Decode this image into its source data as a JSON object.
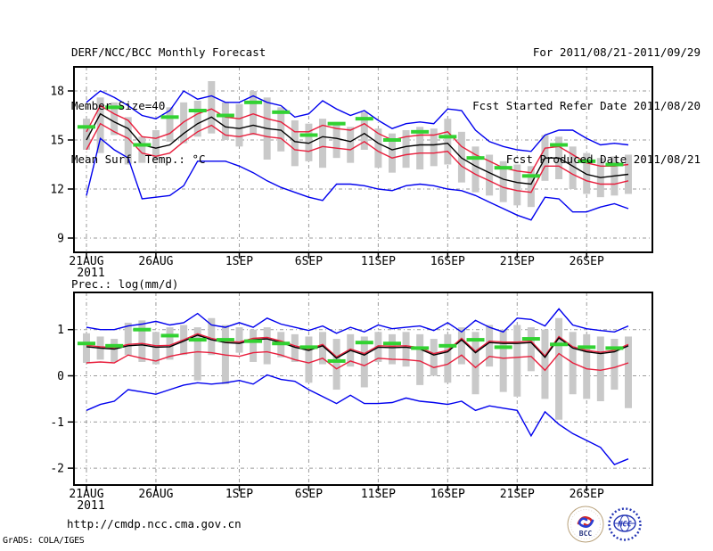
{
  "header": {
    "title": "DERF/NCC/BCC Monthly Forecast",
    "member_size": "Member Size=40",
    "period": "For 2011/08/21-2011/09/29",
    "refer_date": "Fcst Started Refer Date 2011/08/20",
    "produced_date": "Fcst Produced Date 2011/08/21"
  },
  "footer": {
    "url": "http://cmdp.ncc.cma.gov.cn",
    "credit": "GrADS: COLA/IGES",
    "logos": [
      {
        "name": "bcc-logo",
        "text": "BCC"
      },
      {
        "name": "ncc-logo",
        "text": "NCC"
      }
    ]
  },
  "colors": {
    "blue": "#0000ee",
    "red": "#e81e3c",
    "black": "#000000",
    "green": "#32d232",
    "bar_gray": "#c9c9c9",
    "grid_gray": "#999999",
    "frame": "#000000"
  },
  "chart_data": [
    {
      "type": "line",
      "title": "Mean Surf. Temp.: °C",
      "n_days": 40,
      "start_date": "21AUG2011",
      "end_date": "29SEP2011",
      "x_tick_labels": [
        "21AUG",
        "26AUG",
        "1SEP",
        "6SEP",
        "11SEP",
        "16SEP",
        "21SEP",
        "26SEP"
      ],
      "x_tick_days": [
        0,
        5,
        11,
        16,
        21,
        26,
        31,
        36
      ],
      "x_year_label": "2011",
      "y_ticks": [
        9,
        12,
        15,
        18
      ],
      "ylim": [
        8.1,
        19.5
      ],
      "grid": true,
      "series": [
        {
          "name": "ensemble-max",
          "color": "blue",
          "values": [
            17.3,
            18.0,
            17.6,
            17.1,
            16.5,
            16.3,
            16.8,
            18.0,
            17.5,
            17.7,
            17.3,
            17.3,
            17.7,
            17.3,
            17.1,
            16.4,
            16.6,
            17.4,
            16.9,
            16.5,
            16.8,
            16.2,
            15.7,
            16.0,
            16.1,
            16.0,
            16.9,
            16.8,
            15.6,
            14.9,
            14.6,
            14.4,
            14.3,
            15.3,
            15.6,
            15.6,
            15.1,
            14.7,
            14.8,
            14.7
          ]
        },
        {
          "name": "upper-spread",
          "color": "red",
          "values": [
            15.5,
            17.1,
            16.6,
            16.2,
            15.2,
            15.1,
            15.4,
            16.1,
            16.6,
            16.9,
            16.4,
            16.3,
            16.6,
            16.3,
            16.1,
            15.5,
            15.5,
            15.9,
            15.7,
            15.6,
            16.0,
            15.4,
            15.0,
            15.2,
            15.3,
            15.3,
            15.5,
            14.6,
            14.1,
            13.7,
            13.3,
            13.1,
            13.0,
            14.5,
            14.6,
            14.1,
            13.6,
            13.4,
            13.4,
            13.5
          ]
        },
        {
          "name": "ensemble-mean",
          "color": "black",
          "values": [
            15.0,
            16.6,
            16.1,
            15.7,
            14.7,
            14.5,
            14.7,
            15.4,
            16.0,
            16.4,
            15.8,
            15.7,
            15.9,
            15.7,
            15.6,
            14.9,
            14.8,
            15.2,
            15.1,
            14.9,
            15.4,
            14.8,
            14.4,
            14.6,
            14.7,
            14.7,
            14.8,
            13.9,
            13.4,
            13.0,
            12.6,
            12.4,
            12.3,
            13.9,
            13.9,
            13.4,
            12.9,
            12.7,
            12.8,
            12.9
          ]
        },
        {
          "name": "lower-spread",
          "color": "red",
          "values": [
            14.4,
            16.0,
            15.5,
            15.1,
            14.2,
            14.0,
            14.2,
            14.9,
            15.5,
            15.9,
            15.3,
            15.2,
            15.4,
            15.2,
            15.1,
            14.4,
            14.3,
            14.6,
            14.5,
            14.4,
            14.9,
            14.3,
            13.9,
            14.1,
            14.2,
            14.2,
            14.3,
            13.4,
            12.9,
            12.5,
            12.1,
            11.9,
            11.8,
            13.4,
            13.4,
            12.9,
            12.5,
            12.3,
            12.3,
            12.5
          ]
        },
        {
          "name": "ensemble-min",
          "color": "blue",
          "values": [
            11.6,
            15.1,
            14.4,
            13.9,
            11.4,
            11.5,
            11.6,
            12.2,
            13.7,
            13.7,
            13.7,
            13.4,
            13.0,
            12.5,
            12.1,
            11.8,
            11.5,
            11.3,
            12.3,
            12.3,
            12.2,
            12.0,
            11.9,
            12.2,
            12.3,
            12.2,
            12.0,
            11.9,
            11.6,
            11.2,
            10.8,
            10.4,
            10.1,
            11.5,
            11.4,
            10.6,
            10.6,
            10.9,
            11.1,
            10.8
          ]
        }
      ],
      "bars": {
        "name": "member-range",
        "lo": [
          14.4,
          14.2,
          15.3,
          13.5,
          13.6,
          13.8,
          14.9,
          14.8,
          15.2,
          15.4,
          15.0,
          14.6,
          15.3,
          13.8,
          14.3,
          13.4,
          13.7,
          13.3,
          13.9,
          13.6,
          14.4,
          13.3,
          13.0,
          13.3,
          13.2,
          13.4,
          13.5,
          12.4,
          11.8,
          11.6,
          11.2,
          11.0,
          10.9,
          12.5,
          12.6,
          12.0,
          11.7,
          11.5,
          11.6,
          11.7
        ],
        "hi": [
          16.3,
          17.6,
          17.3,
          16.4,
          15.2,
          15.6,
          17.0,
          17.3,
          17.4,
          18.6,
          17.3,
          17.2,
          18.0,
          17.6,
          17.0,
          16.2,
          16.0,
          16.3,
          16.1,
          15.8,
          16.7,
          15.7,
          15.4,
          15.6,
          15.8,
          15.7,
          16.3,
          15.5,
          14.6,
          14.1,
          13.7,
          13.5,
          13.4,
          15.3,
          15.2,
          14.6,
          14.2,
          13.9,
          14.0,
          14.1
        ]
      },
      "dashes": {
        "name": "climatology",
        "days": [
          0,
          2,
          4,
          6,
          8,
          10,
          12,
          14,
          16,
          18,
          20,
          22,
          24,
          26,
          28,
          30,
          32,
          34,
          36,
          38
        ],
        "values": [
          15.8,
          17.0,
          14.7,
          16.4,
          16.8,
          16.5,
          17.3,
          16.7,
          15.3,
          16.0,
          16.3,
          15.0,
          15.5,
          15.2,
          13.9,
          13.3,
          12.8,
          14.7,
          13.7,
          13.5
        ]
      }
    },
    {
      "type": "line",
      "title": "Prec.: log(mm/d)",
      "n_days": 40,
      "start_date": "21AUG2011",
      "end_date": "29SEP2011",
      "x_tick_labels": [
        "21AUG",
        "26AUG",
        "1SEP",
        "6SEP",
        "11SEP",
        "16SEP",
        "21SEP",
        "26SEP"
      ],
      "x_tick_days": [
        0,
        5,
        11,
        16,
        21,
        26,
        31,
        36
      ],
      "x_year_label": "2011",
      "y_ticks": [
        -2,
        -1,
        0,
        1
      ],
      "ylim": [
        -2.37,
        1.79
      ],
      "grid": true,
      "series": [
        {
          "name": "ensemble-max",
          "color": "blue",
          "values": [
            1.05,
            1.0,
            1.0,
            1.08,
            1.12,
            1.18,
            1.1,
            1.15,
            1.35,
            1.1,
            1.05,
            1.15,
            1.05,
            1.25,
            1.12,
            1.05,
            0.98,
            1.08,
            0.92,
            1.05,
            0.95,
            1.1,
            1.02,
            1.05,
            1.08,
            0.98,
            1.15,
            0.95,
            1.2,
            1.05,
            0.95,
            1.25,
            1.22,
            1.08,
            1.45,
            1.1,
            1.02,
            0.98,
            0.95,
            1.08
          ]
        },
        {
          "name": "upper-spread",
          "color": "red",
          "values": [
            0.66,
            0.63,
            0.61,
            0.68,
            0.7,
            0.65,
            0.66,
            0.78,
            0.91,
            0.81,
            0.75,
            0.73,
            0.81,
            0.83,
            0.75,
            0.65,
            0.58,
            0.68,
            0.41,
            0.58,
            0.48,
            0.65,
            0.64,
            0.65,
            0.61,
            0.48,
            0.55,
            0.81,
            0.53,
            0.75,
            0.73,
            0.73,
            0.75,
            0.43,
            0.85,
            0.63,
            0.55,
            0.51,
            0.55,
            0.68
          ]
        },
        {
          "name": "ensemble-mean",
          "color": "black",
          "values": [
            0.63,
            0.6,
            0.58,
            0.65,
            0.67,
            0.62,
            0.63,
            0.75,
            0.88,
            0.78,
            0.72,
            0.7,
            0.78,
            0.8,
            0.72,
            0.62,
            0.55,
            0.65,
            0.38,
            0.55,
            0.45,
            0.62,
            0.61,
            0.62,
            0.58,
            0.45,
            0.52,
            0.78,
            0.5,
            0.72,
            0.7,
            0.7,
            0.72,
            0.4,
            0.82,
            0.6,
            0.52,
            0.48,
            0.52,
            0.65
          ]
        },
        {
          "name": "lower-spread",
          "color": "red",
          "values": [
            0.28,
            0.3,
            0.28,
            0.45,
            0.38,
            0.32,
            0.42,
            0.48,
            0.52,
            0.5,
            0.45,
            0.42,
            0.5,
            0.52,
            0.45,
            0.35,
            0.28,
            0.38,
            0.15,
            0.32,
            0.22,
            0.38,
            0.36,
            0.35,
            0.32,
            0.18,
            0.25,
            0.45,
            0.18,
            0.42,
            0.38,
            0.4,
            0.42,
            0.12,
            0.48,
            0.28,
            0.15,
            0.12,
            0.18,
            0.28
          ]
        },
        {
          "name": "ensemble-min",
          "color": "blue",
          "values": [
            -0.75,
            -0.62,
            -0.55,
            -0.3,
            -0.35,
            -0.4,
            -0.3,
            -0.2,
            -0.15,
            -0.18,
            -0.15,
            -0.1,
            -0.18,
            0.02,
            -0.08,
            -0.12,
            -0.3,
            -0.45,
            -0.6,
            -0.42,
            -0.6,
            -0.6,
            -0.58,
            -0.48,
            -0.55,
            -0.58,
            -0.62,
            -0.55,
            -0.75,
            -0.65,
            -0.7,
            -0.75,
            -1.3,
            -0.78,
            -1.05,
            -1.25,
            -1.4,
            -1.55,
            -1.92,
            -1.8
          ]
        }
      ],
      "bars": {
        "name": "member-range",
        "lo": [
          0.28,
          0.35,
          0.3,
          0.45,
          0.3,
          0.25,
          0.35,
          0.45,
          -0.1,
          0.45,
          -0.18,
          0.5,
          0.3,
          0.25,
          0.4,
          0.3,
          -0.15,
          0.25,
          -0.3,
          0.2,
          -0.25,
          0.3,
          0.25,
          0.2,
          -0.2,
          0.0,
          -0.15,
          0.25,
          -0.4,
          0.2,
          -0.35,
          -0.45,
          0.1,
          -0.5,
          -0.95,
          -0.4,
          -0.5,
          -0.55,
          -0.3,
          -0.7
        ],
        "hi": [
          0.92,
          0.85,
          0.8,
          1.15,
          1.2,
          0.95,
          1.05,
          1.1,
          1.05,
          1.25,
          1.1,
          1.05,
          1.0,
          1.05,
          0.95,
          0.9,
          0.85,
          0.95,
          0.8,
          0.9,
          0.85,
          0.95,
          0.9,
          0.95,
          0.9,
          0.8,
          0.9,
          1.05,
          0.95,
          1.1,
          1.0,
          1.1,
          1.05,
          1.0,
          1.25,
          0.95,
          0.9,
          0.85,
          0.8,
          0.85
        ]
      },
      "dashes": {
        "name": "climatology",
        "days": [
          0,
          2,
          4,
          6,
          8,
          10,
          12,
          14,
          16,
          18,
          20,
          22,
          24,
          26,
          28,
          30,
          32,
          34,
          36,
          38
        ],
        "values": [
          0.7,
          0.65,
          1.0,
          0.87,
          0.78,
          0.78,
          0.75,
          0.7,
          0.62,
          0.32,
          0.72,
          0.7,
          0.6,
          0.65,
          0.78,
          0.62,
          0.8,
          0.68,
          0.62,
          0.6
        ]
      }
    }
  ]
}
